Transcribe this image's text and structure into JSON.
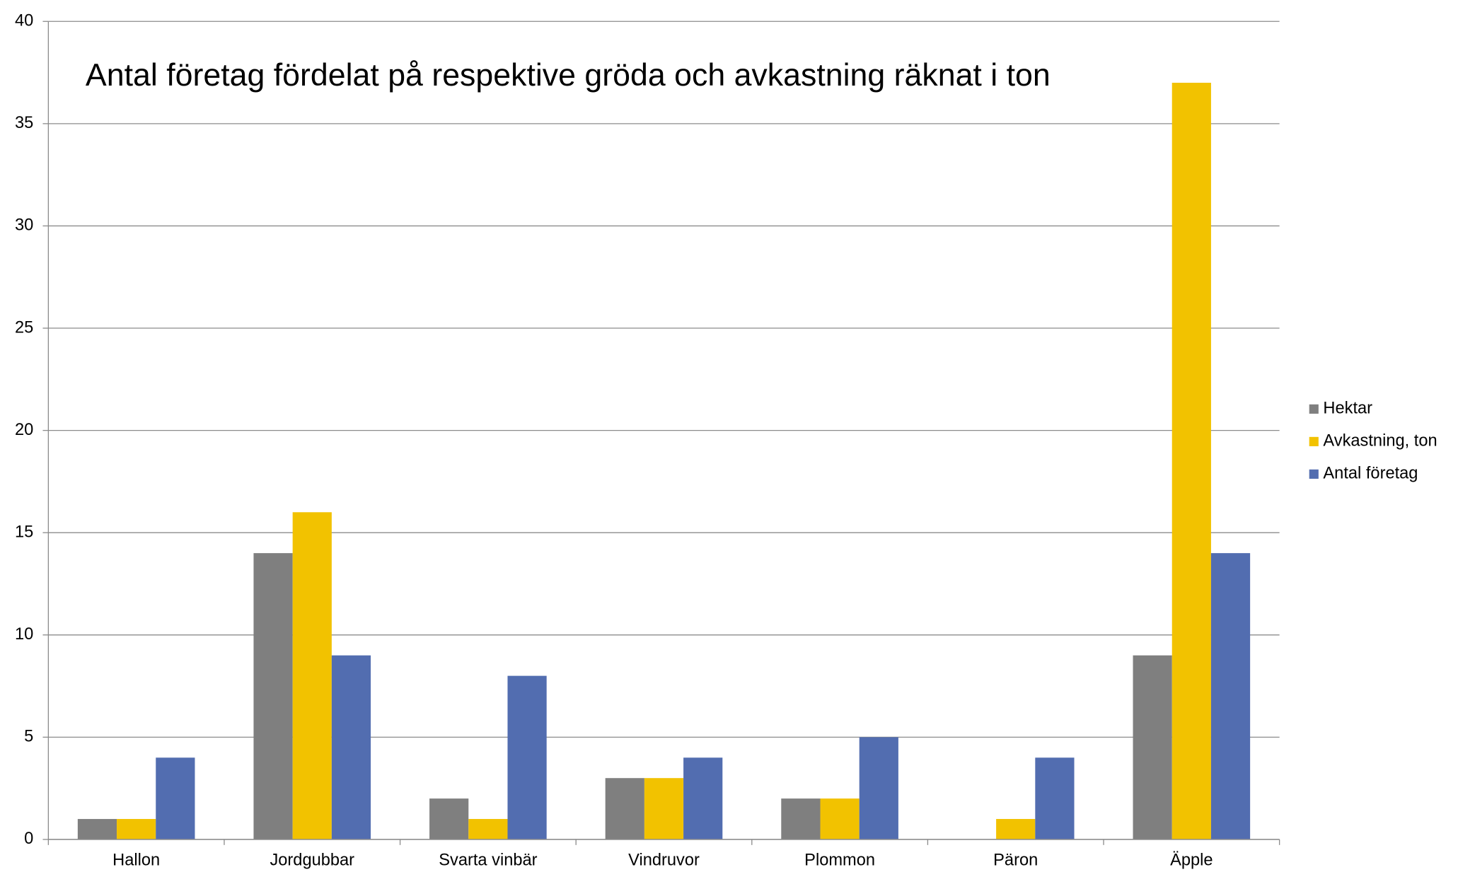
{
  "chart_data": {
    "type": "bar",
    "title": "Antal företag fördelat på respektive gröda och avkastning räknat i ton",
    "categories": [
      "Hallon",
      "Jordgubbar",
      "Svarta vinbär",
      "Vindruvor",
      "Plommon",
      "Päron",
      "Äpple"
    ],
    "series": [
      {
        "name": "Hektar",
        "color": "#7f7f7f",
        "values": [
          1,
          14,
          2,
          3,
          2,
          0,
          9
        ]
      },
      {
        "name": "Avkastning, ton",
        "color": "#f2c200",
        "values": [
          1,
          16,
          1,
          3,
          2,
          1,
          37
        ]
      },
      {
        "name": "Antal företag",
        "color": "#526db0",
        "values": [
          4,
          9,
          8,
          4,
          5,
          4,
          14
        ]
      }
    ],
    "ylim": [
      0,
      40
    ],
    "yticks": [
      0,
      5,
      10,
      15,
      20,
      25,
      30,
      35,
      40
    ],
    "grid": true,
    "legend": "right"
  }
}
